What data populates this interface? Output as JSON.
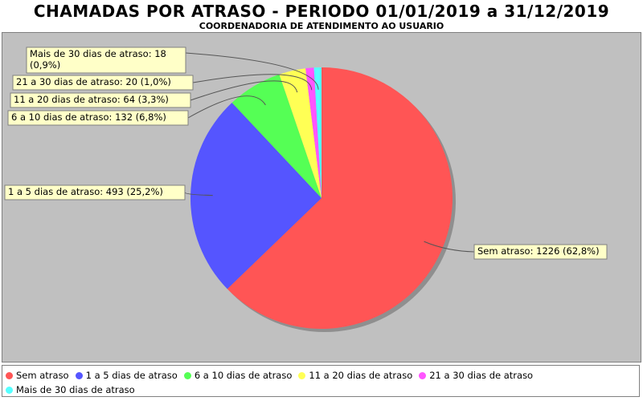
{
  "chart_data": {
    "type": "pie",
    "title": "CHAMADAS POR ATRASO - PERIODO 01/01/2019 a 31/12/2019",
    "subtitle": "COORDENADORIA DE ATENDIMENTO AO USUARIO",
    "slices": [
      {
        "name": "Sem atraso",
        "value": 1226,
        "percent": "62,8%",
        "label_lines": [
          "Sem atraso: 1226 (62,8%)"
        ],
        "color": "#ff5555"
      },
      {
        "name": "1 a 5 dias de atraso",
        "value": 493,
        "percent": "25,2%",
        "label_lines": [
          "1 a 5 dias de atraso: 493 (25,2%)"
        ],
        "color": "#5555ff"
      },
      {
        "name": "6 a 10 dias de atraso",
        "value": 132,
        "percent": "6,8%",
        "label_lines": [
          "6 a 10 dias de atraso: 132 (6,8%)"
        ],
        "color": "#55ff55"
      },
      {
        "name": "11 a 20 dias de atraso",
        "value": 64,
        "percent": "3,3%",
        "label_lines": [
          "11 a 20 dias de atraso: 64 (3,3%)"
        ],
        "color": "#ffff55"
      },
      {
        "name": "21 a 30 dias de atraso",
        "value": 20,
        "percent": "1,0%",
        "label_lines": [
          "21 a 30 dias de atraso: 20 (1,0%)"
        ],
        "color": "#ff55ff"
      },
      {
        "name": "Mais de 30 dias de atraso",
        "value": 18,
        "percent": "0,9%",
        "label_lines": [
          "Mais de 30 dias de atraso: 18",
          "(0,9%)"
        ],
        "color": "#55ffff"
      }
    ],
    "legend_position": "bottom",
    "background_color": "#c0c0c0"
  }
}
